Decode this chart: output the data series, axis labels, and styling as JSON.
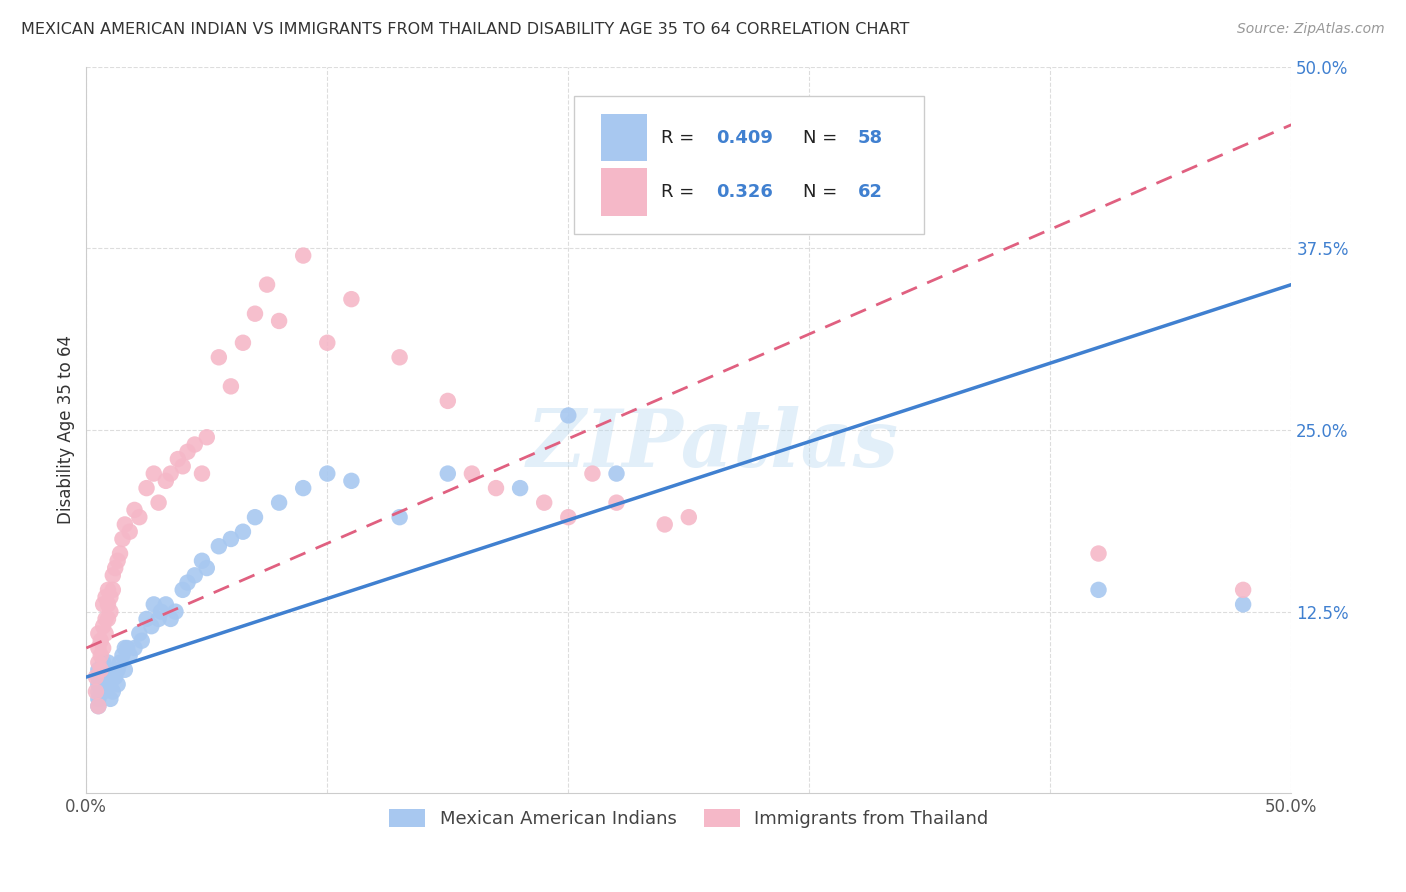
{
  "title": "MEXICAN AMERICAN INDIAN VS IMMIGRANTS FROM THAILAND DISABILITY AGE 35 TO 64 CORRELATION CHART",
  "source": "Source: ZipAtlas.com",
  "ylabel": "Disability Age 35 to 64",
  "xlim": [
    0.0,
    0.5
  ],
  "ylim": [
    0.0,
    0.5
  ],
  "xticks": [
    0.0,
    0.1,
    0.2,
    0.3,
    0.4,
    0.5
  ],
  "xticklabels": [
    "0.0%",
    "",
    "",
    "",
    "",
    "50.0%"
  ],
  "yticks": [
    0.125,
    0.25,
    0.375,
    0.5
  ],
  "yticklabels": [
    "12.5%",
    "25.0%",
    "37.5%",
    "50.0%"
  ],
  "blue_R": 0.409,
  "blue_N": 58,
  "pink_R": 0.326,
  "pink_N": 62,
  "blue_color": "#a8c8f0",
  "pink_color": "#f5b8c8",
  "blue_line_color": "#4080d0",
  "pink_line_color": "#e06080",
  "watermark": "ZIPatlas",
  "legend_label_blue": "Mexican American Indians",
  "legend_label_pink": "Immigrants from Thailand",
  "blue_line_x0": 0.0,
  "blue_line_y0": 0.08,
  "blue_line_x1": 0.5,
  "blue_line_y1": 0.35,
  "pink_line_x0": 0.0,
  "pink_line_y0": 0.1,
  "pink_line_x1": 0.5,
  "pink_line_y1": 0.46,
  "blue_scatter_x": [
    0.005,
    0.005,
    0.005,
    0.005,
    0.005,
    0.005,
    0.006,
    0.007,
    0.007,
    0.008,
    0.008,
    0.009,
    0.009,
    0.01,
    0.01,
    0.01,
    0.011,
    0.012,
    0.013,
    0.013,
    0.014,
    0.015,
    0.016,
    0.016,
    0.017,
    0.018,
    0.02,
    0.022,
    0.023,
    0.025,
    0.027,
    0.028,
    0.03,
    0.031,
    0.033,
    0.035,
    0.037,
    0.04,
    0.042,
    0.045,
    0.048,
    0.05,
    0.055,
    0.06,
    0.065,
    0.07,
    0.08,
    0.09,
    0.1,
    0.11,
    0.13,
    0.15,
    0.18,
    0.2,
    0.22,
    0.28,
    0.42,
    0.48
  ],
  "blue_scatter_y": [
    0.06,
    0.07,
    0.075,
    0.08,
    0.085,
    0.065,
    0.08,
    0.07,
    0.09,
    0.075,
    0.085,
    0.08,
    0.09,
    0.075,
    0.085,
    0.065,
    0.07,
    0.08,
    0.075,
    0.085,
    0.09,
    0.095,
    0.1,
    0.085,
    0.1,
    0.095,
    0.1,
    0.11,
    0.105,
    0.12,
    0.115,
    0.13,
    0.12,
    0.125,
    0.13,
    0.12,
    0.125,
    0.14,
    0.145,
    0.15,
    0.16,
    0.155,
    0.17,
    0.175,
    0.18,
    0.19,
    0.2,
    0.21,
    0.22,
    0.215,
    0.19,
    0.22,
    0.21,
    0.26,
    0.22,
    0.4,
    0.14,
    0.13
  ],
  "pink_scatter_x": [
    0.004,
    0.004,
    0.005,
    0.005,
    0.005,
    0.005,
    0.006,
    0.006,
    0.006,
    0.007,
    0.007,
    0.007,
    0.008,
    0.008,
    0.008,
    0.009,
    0.009,
    0.009,
    0.01,
    0.01,
    0.011,
    0.011,
    0.012,
    0.013,
    0.014,
    0.015,
    0.016,
    0.018,
    0.02,
    0.022,
    0.025,
    0.028,
    0.03,
    0.033,
    0.035,
    0.038,
    0.04,
    0.042,
    0.045,
    0.048,
    0.05,
    0.055,
    0.06,
    0.065,
    0.07,
    0.075,
    0.08,
    0.09,
    0.1,
    0.11,
    0.13,
    0.15,
    0.16,
    0.17,
    0.19,
    0.2,
    0.21,
    0.22,
    0.24,
    0.25,
    0.42,
    0.48
  ],
  "pink_scatter_y": [
    0.08,
    0.07,
    0.09,
    0.1,
    0.11,
    0.06,
    0.085,
    0.095,
    0.105,
    0.1,
    0.115,
    0.13,
    0.12,
    0.11,
    0.135,
    0.12,
    0.13,
    0.14,
    0.125,
    0.135,
    0.15,
    0.14,
    0.155,
    0.16,
    0.165,
    0.175,
    0.185,
    0.18,
    0.195,
    0.19,
    0.21,
    0.22,
    0.2,
    0.215,
    0.22,
    0.23,
    0.225,
    0.235,
    0.24,
    0.22,
    0.245,
    0.3,
    0.28,
    0.31,
    0.33,
    0.35,
    0.325,
    0.37,
    0.31,
    0.34,
    0.3,
    0.27,
    0.22,
    0.21,
    0.2,
    0.19,
    0.22,
    0.2,
    0.185,
    0.19,
    0.165,
    0.14
  ]
}
